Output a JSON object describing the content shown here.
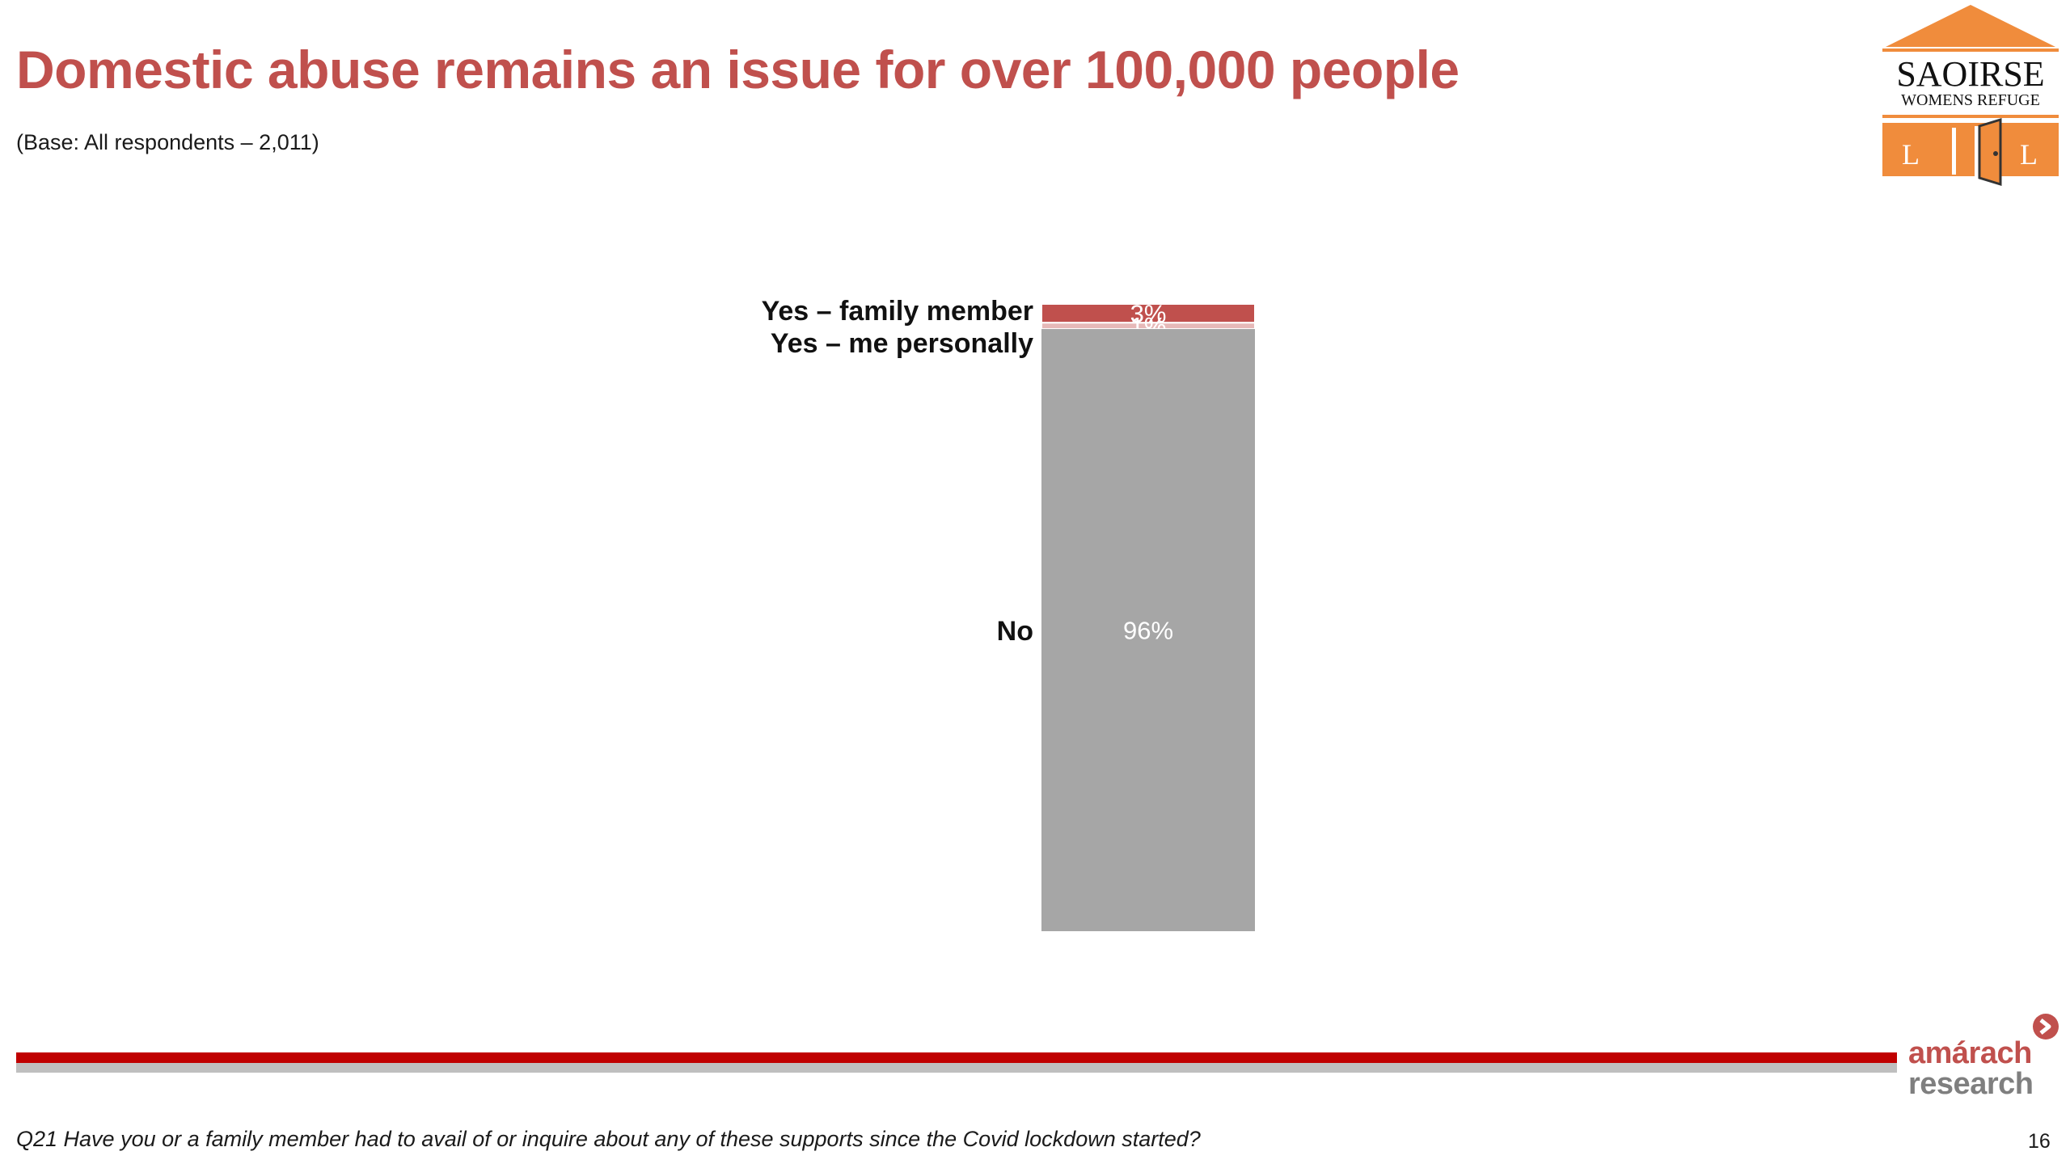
{
  "slide": {
    "title": "Domestic abuse remains an issue for over 100,000 people",
    "subtitle": "(Base: All respondents – 2,011)",
    "question": "Q21 Have you or a family member had to avail of or inquire about any of these supports since the Covid  lockdown started?",
    "page_number": "16"
  },
  "logos": {
    "saoirse_line1": "SAOIRSE",
    "saoirse_line2": "WOMENS REFUGE",
    "amarach_line1": "amárach",
    "amarach_line2": "research"
  },
  "colors": {
    "title": "#c0504d",
    "family_member": "#c0504d",
    "me_personally": "#e6b9b8",
    "no": "#a6a6a6",
    "footer_red": "#c00000",
    "footer_grey": "#bfbfbf",
    "logo_orange": "#f08c3c"
  },
  "chart_data": {
    "type": "bar",
    "stacked": true,
    "orientation": "vertical",
    "categories": [
      ""
    ],
    "series": [
      {
        "name": "Yes – family member",
        "values": [
          3
        ],
        "label": "3%",
        "color": "#c0504d"
      },
      {
        "name": "Yes – me personally",
        "values": [
          1
        ],
        "label": "1%",
        "color": "#e6b9b8"
      },
      {
        "name": "No",
        "values": [
          96
        ],
        "label": "96%",
        "color": "#a6a6a6"
      }
    ],
    "ylim": [
      0,
      100
    ],
    "legend": "left"
  }
}
